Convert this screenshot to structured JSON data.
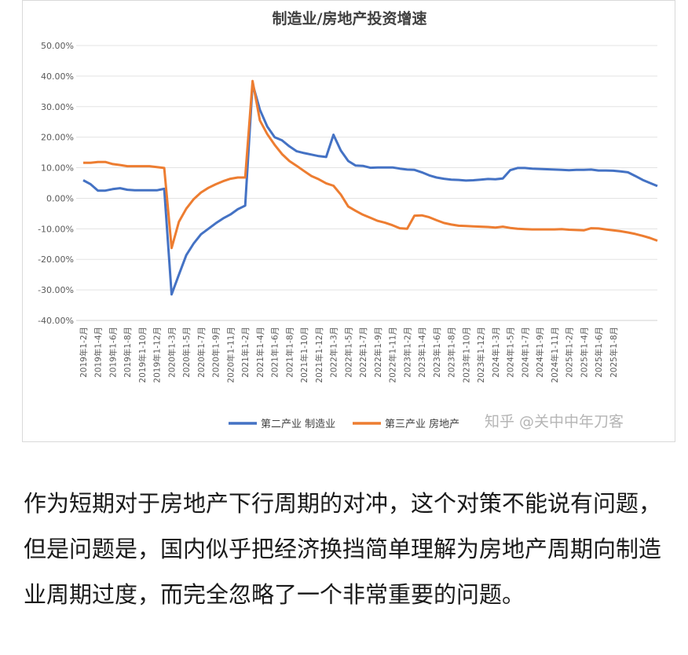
{
  "chart_data": {
    "type": "line",
    "title": "制造业/房地产投资增速",
    "ylim": [
      -0.4,
      0.5
    ],
    "yticks": [
      "50.00%",
      "40.00%",
      "30.00%",
      "20.00%",
      "10.00%",
      "0.00%",
      "-10.00%",
      "-20.00%",
      "-30.00%",
      "-40.00%"
    ],
    "ytick_values": [
      0.5,
      0.4,
      0.3,
      0.2,
      0.1,
      0.0,
      -0.1,
      -0.2,
      -0.3,
      -0.4
    ],
    "xticks": [
      "2019年1-2月",
      "2019年1-4月",
      "2019年1-6月",
      "2019年1-8月",
      "2019年1-10月",
      "2019年1-12月",
      "2020年1-3月",
      "2020年1-5月",
      "2020年1-7月",
      "2020年1-9月",
      "2020年1-11月",
      "2021年1-2月",
      "2021年1-4月",
      "2021年1-6月",
      "2021年1-8月",
      "2021年1-10月",
      "2021年1-12月",
      "2022年1-3月",
      "2022年1-5月",
      "2022年1-7月",
      "2022年1-9月",
      "2022年1-11月",
      "2023年1-2月",
      "2023年1-4月",
      "2023年1-6月",
      "2023年1-8月",
      "2023年1-10月",
      "2023年1-12月",
      "2024年1-3月",
      "2024年1-5月",
      "2024年1-7月",
      "2024年1-9月",
      "2024年1-11月",
      "2025年1-2月",
      "2025年1-4月",
      "2025年1-6月",
      "2025年1-8月"
    ],
    "grid": true,
    "legend_position": "bottom-left",
    "series": [
      {
        "name": "第二产业 制造业",
        "color": "#4472c4",
        "values": [
          0.059,
          0.046,
          0.025,
          0.025,
          0.03,
          0.033,
          0.028,
          0.026,
          0.026,
          0.026,
          0.026,
          0.031,
          -0.315,
          -0.25,
          -0.186,
          -0.148,
          -0.118,
          -0.1,
          -0.082,
          -0.066,
          -0.053,
          -0.036,
          -0.024,
          0.375,
          0.29,
          0.235,
          0.2,
          0.19,
          0.17,
          0.154,
          0.148,
          0.143,
          0.138,
          0.135,
          0.208,
          0.156,
          0.122,
          0.107,
          0.106,
          0.1,
          0.101,
          0.101,
          0.101,
          0.097,
          0.094,
          0.093,
          0.085,
          0.075,
          0.068,
          0.064,
          0.061,
          0.06,
          0.058,
          0.059,
          0.061,
          0.063,
          0.062,
          0.065,
          0.092,
          0.099,
          0.099,
          0.097,
          0.096,
          0.095,
          0.094,
          0.093,
          0.092,
          0.093,
          0.093,
          0.094,
          0.091,
          0.091,
          0.09,
          0.088,
          0.085,
          0.073,
          0.06,
          0.05,
          0.04
        ]
      },
      {
        "name": "第三产业 房地产",
        "color": "#ed7d31",
        "values": [
          0.116,
          0.116,
          0.119,
          0.119,
          0.112,
          0.109,
          0.105,
          0.105,
          0.105,
          0.105,
          0.102,
          0.099,
          -0.163,
          -0.077,
          -0.034,
          -0.003,
          0.019,
          0.034,
          0.046,
          0.056,
          0.064,
          0.068,
          0.068,
          0.384,
          0.255,
          0.21,
          0.175,
          0.145,
          0.122,
          0.106,
          0.089,
          0.073,
          0.062,
          0.049,
          0.041,
          0.012,
          -0.027,
          -0.041,
          -0.054,
          -0.064,
          -0.074,
          -0.08,
          -0.088,
          -0.098,
          -0.1,
          -0.057,
          -0.056,
          -0.062,
          -0.072,
          -0.081,
          -0.086,
          -0.09,
          -0.091,
          -0.092,
          -0.093,
          -0.094,
          -0.096,
          -0.093,
          -0.097,
          -0.1,
          -0.101,
          -0.102,
          -0.102,
          -0.102,
          -0.102,
          -0.101,
          -0.103,
          -0.104,
          -0.105,
          -0.098,
          -0.099,
          -0.102,
          -0.105,
          -0.108,
          -0.112,
          -0.117,
          -0.123,
          -0.13,
          -0.139
        ]
      }
    ],
    "watermark": "知乎 @关中中年刀客"
  },
  "article": {
    "text": "作为短期对于房地产下行周期的对冲，这个对策不能说有问题，但是问题是，国内似乎把经济换挡简单理解为房地产周期向制造业周期过度，而完全忽略了一个非常重要的问题。"
  }
}
